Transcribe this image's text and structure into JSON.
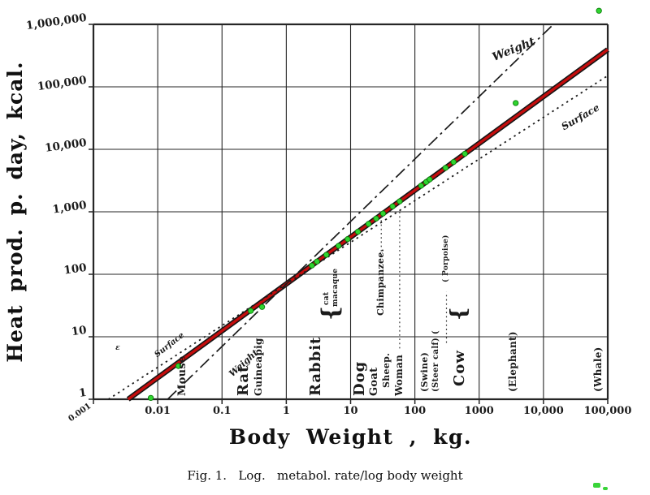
{
  "figure": {
    "caption": "Fig. 1.   Log.   metabol. rate/log body weight"
  },
  "chart_data": {
    "type": "scatter",
    "title": "",
    "xlabel": "Body Weight , kg.",
    "ylabel": "Heat prod. p. day, kcal.",
    "x_scale": "log",
    "y_scale": "log",
    "xlim": [
      0.001,
      100000
    ],
    "ylim": [
      1,
      1000000
    ],
    "x_ticks": [
      "0.001",
      "0.01",
      "0.1",
      "1",
      "10",
      "100",
      "1000",
      "10,000",
      "100,000"
    ],
    "y_ticks": [
      "1",
      "10",
      "100",
      "1,000",
      "10,000",
      "100,000",
      "1,000,000"
    ],
    "grid": "log decade lines, boxed frame",
    "legend": "none",
    "point_color": "#2fd42f",
    "reference_lines": [
      {
        "name": "metabolic-rate-line",
        "label": "",
        "style": "solid-red",
        "color": "#c40d0d",
        "coefficient": 70,
        "exponent": 0.75
      },
      {
        "name": "weight-line",
        "label": "Weight",
        "style": "dash-dot",
        "color": "#1b1b1b",
        "coefficient": 70,
        "exponent": 1
      },
      {
        "name": "surface-line",
        "label": "Surface",
        "style": "dotted",
        "color": "#1b1b1b",
        "coefficient": 70,
        "exponent": 0.6667
      }
    ],
    "points": [
      {
        "animal": "mouse-small",
        "kg": 0.0078,
        "kcal": 1.05
      },
      {
        "animal": "mouse",
        "kg": 0.021,
        "kcal": 3.4
      },
      {
        "animal": "rat",
        "kg": 0.28,
        "kcal": 26
      },
      {
        "animal": "guinea-pig",
        "kg": 0.42,
        "kcal": 30
      },
      {
        "animal": "rabbit",
        "kg": 2.5,
        "kcal": 138
      },
      {
        "animal": "cat",
        "kg": 3.0,
        "kcal": 160
      },
      {
        "animal": "macaque",
        "kg": 4.2,
        "kcal": 205
      },
      {
        "animal": "dog-1",
        "kg": 6.5,
        "kcal": 285
      },
      {
        "animal": "dog-2",
        "kg": 9,
        "kcal": 365
      },
      {
        "animal": "dog-3",
        "kg": 13,
        "kcal": 480
      },
      {
        "animal": "dog-4",
        "kg": 19,
        "kcal": 640
      },
      {
        "animal": "goat",
        "kg": 25,
        "kcal": 780
      },
      {
        "animal": "chimpanzee",
        "kg": 32,
        "kcal": 940
      },
      {
        "animal": "sheep",
        "kg": 45,
        "kcal": 1220
      },
      {
        "animal": "woman",
        "kg": 58,
        "kcal": 1470
      },
      {
        "animal": "swine",
        "kg": 125,
        "kcal": 2615
      },
      {
        "animal": "steer-calf",
        "kg": 150,
        "kcal": 3000
      },
      {
        "animal": "porpoise",
        "kg": 170,
        "kcal": 3300
      },
      {
        "animal": "cow-1",
        "kg": 300,
        "kcal": 5050
      },
      {
        "animal": "cow-2",
        "kg": 400,
        "kcal": 6260
      },
      {
        "animal": "cow-3",
        "kg": 600,
        "kcal": 8490
      },
      {
        "animal": "elephant",
        "kg": 3700,
        "kcal": 55000
      },
      {
        "animal": "whale",
        "kg": 73000,
        "kcal": 1650000
      }
    ],
    "animal_labels": [
      {
        "text": "Mouse",
        "kg": 0.0245,
        "kcal_start": 1.13,
        "fs": 13
      },
      {
        "text": "Rat",
        "kg": 0.224,
        "kcal_start": 1.13,
        "fs": 18
      },
      {
        "text": "Guineapig",
        "kg": 0.37,
        "kcal_start": 1.13,
        "fs": 12
      },
      {
        "text": "Rabbit",
        "kg": 3.0,
        "kcal_start": 1.13,
        "fs": 18
      },
      {
        "text": "cat",
        "kg": 4.4,
        "kcal_start": 32,
        "fs": 9
      },
      {
        "text": "macaque",
        "kg": 6.0,
        "kcal_start": 30,
        "fs": 9
      },
      {
        "text": "{",
        "kg": 5.1,
        "kcal_start": 18,
        "fs": 28
      },
      {
        "text": "Dog",
        "kg": 14.5,
        "kcal_start": 1.13,
        "fs": 18
      },
      {
        "text": "Goat",
        "kg": 24,
        "kcal_start": 1.13,
        "fs": 13
      },
      {
        "text": "Sheep.",
        "kg": 37,
        "kcal_start": 1.5,
        "fs": 11
      },
      {
        "text": "Woman",
        "kg": 58,
        "kcal_start": 1.13,
        "fs": 12
      },
      {
        "text": "Chimpanzee.",
        "kg": 30,
        "kcal_start": 22,
        "fs": 11
      },
      {
        "text": "(Swine)",
        "kg": 145,
        "kcal_start": 1.3,
        "fs": 11
      },
      {
        "text": "(Steer calf) (",
        "kg": 220,
        "kcal_start": 1.3,
        "fs": 10
      },
      {
        "text": "( Porpoise)",
        "kg": 310,
        "kcal_start": 75,
        "fs": 9
      },
      {
        "text": "Cow",
        "kg": 510,
        "kcal_start": 1.6,
        "fs": 18
      },
      {
        "text": "{",
        "kg": 510,
        "kcal_start": 18,
        "fs": 26
      },
      {
        "text": "(Elephant)",
        "kg": 3400,
        "kcal_start": 1.3,
        "fs": 12
      },
      {
        "text": "(Whale)",
        "kg": 72000,
        "kcal_start": 1.3,
        "fs": 12
      }
    ],
    "line_labels": [
      {
        "text": "Weight",
        "kg": 1500,
        "kcal": 350000,
        "rot": -22,
        "fs": 14
      },
      {
        "text": "Surface",
        "kg": 18000,
        "kcal": 26000,
        "rot": -30,
        "fs": 12
      },
      {
        "text": "Surface",
        "kg": 0.0085,
        "kcal": 5.5,
        "rot": -38,
        "fs": 10
      },
      {
        "text": "Weight",
        "kg": 0.12,
        "kcal": 2.8,
        "rot": -42,
        "fs": 11
      },
      {
        "text": "ɛ",
        "kg": 0.0022,
        "kcal": 7.5,
        "rot": 0,
        "fs": 9
      }
    ],
    "leader_lines": [
      {
        "kg": 30,
        "from_kcal": 200,
        "to_kcal": 900
      },
      {
        "kg": 58,
        "from_kcal": 6.5,
        "to_kcal": 1100
      },
      {
        "kg": 310,
        "from_kcal": 8,
        "to_kcal": 52
      }
    ]
  }
}
